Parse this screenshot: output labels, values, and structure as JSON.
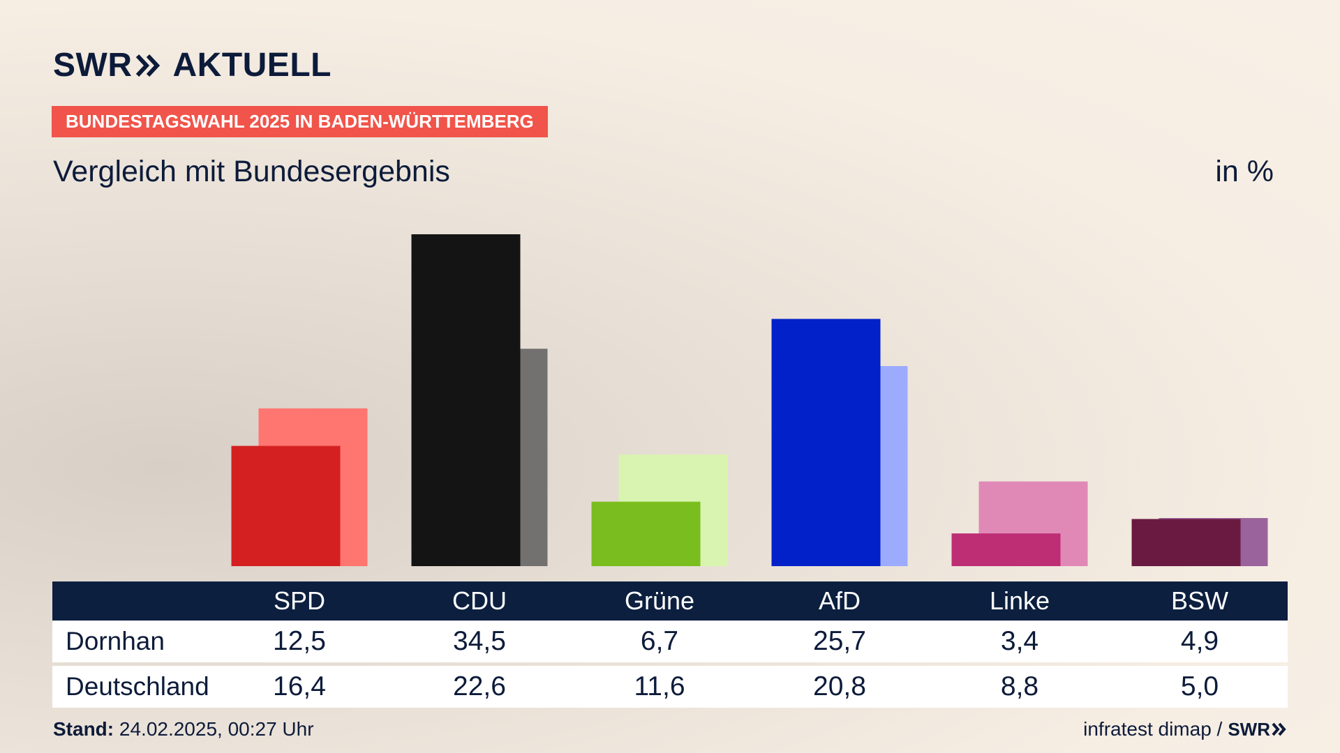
{
  "header": {
    "logo_text_left": "SWR",
    "logo_text_right": "AKTUELL",
    "tag": "BUNDESTAGSWAHL 2025 IN BADEN-WÜRTTEMBERG",
    "subtitle": "Vergleich mit Bundesergebnis",
    "unit": "in %"
  },
  "chart_data": {
    "type": "bar",
    "title": "Vergleich mit Bundesergebnis",
    "unit": "in %",
    "categories": [
      "SPD",
      "CDU",
      "Grüne",
      "AfD",
      "Linke",
      "BSW"
    ],
    "series": [
      {
        "name": "Dornhan",
        "values": [
          12.5,
          34.5,
          6.7,
          25.7,
          3.4,
          4.9
        ],
        "colors": [
          "#d42020",
          "#141414",
          "#7abd1e",
          "#0221c8",
          "#bd2e75",
          "#6a1a40"
        ]
      },
      {
        "name": "Deutschland",
        "values": [
          16.4,
          22.6,
          11.6,
          20.8,
          8.8,
          5.0
        ],
        "colors": [
          "#ff7570",
          "#727170",
          "#d8f4b0",
          "#9dabff",
          "#e089b6",
          "#9b639c"
        ]
      }
    ],
    "ylim": [
      0,
      35
    ],
    "grid": false,
    "legend": "table-below"
  },
  "table": {
    "headers": [
      "SPD",
      "CDU",
      "Grüne",
      "AfD",
      "Linke",
      "BSW"
    ],
    "rows": [
      {
        "label": "Dornhan",
        "values": [
          "12,5",
          "34,5",
          "6,7",
          "25,7",
          "3,4",
          "4,9"
        ]
      },
      {
        "label": "Deutschland",
        "values": [
          "16,4",
          "22,6",
          "11,6",
          "20,8",
          "8,8",
          "5,0"
        ]
      }
    ]
  },
  "footer": {
    "stand_label": "Stand:",
    "stand_value": "24.02.2025, 00:27 Uhr",
    "source": "infratest dimap /",
    "source_logo": "SWR"
  },
  "colors": {
    "tag_bg": "#f0544a",
    "navy": "#0c1f3f",
    "text": "#0d1b3a"
  }
}
